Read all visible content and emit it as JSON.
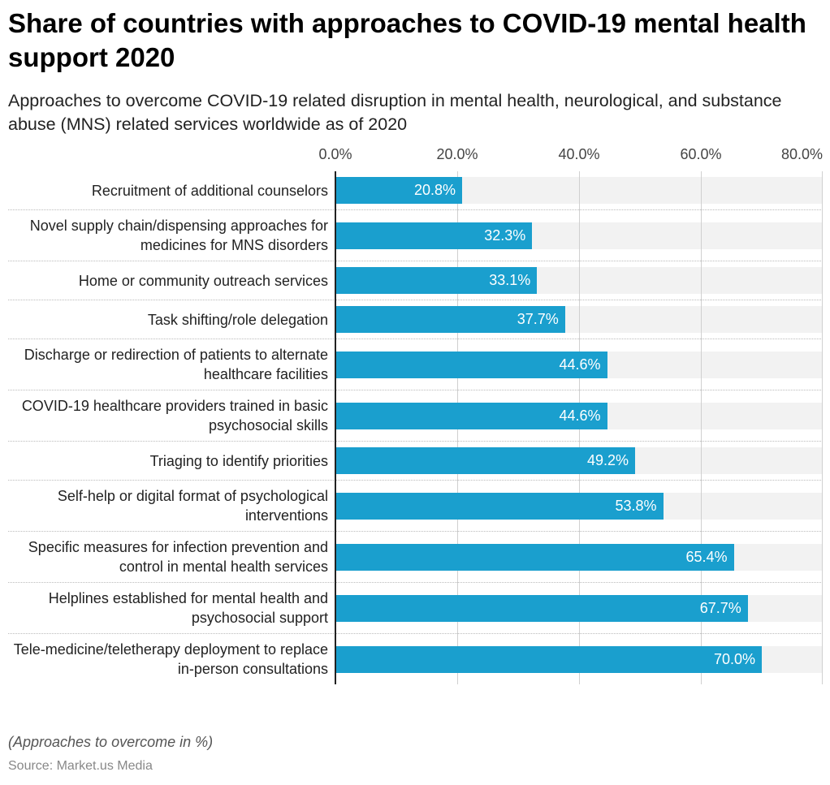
{
  "chart_data": {
    "type": "bar",
    "orientation": "horizontal",
    "title": "Share of countries with approaches to COVID-19 mental health support 2020",
    "subtitle": "Approaches to overcome COVID-19 related disruption in mental health, neurological, and substance abuse (MNS) related services worldwide as of 2020",
    "note": "(Approaches to overcome in %)",
    "source": "Source: Market.us Media",
    "categories": [
      "Recruitment of additional counselors",
      "Novel supply chain/dispensing approaches for medicines for MNS disorders",
      "Home or community outreach services",
      "Task shifting/role delegation",
      "Discharge or redirection of patients to alternate healthcare facilities",
      "COVID-19 healthcare providers trained in basic psychosocial skills",
      "Triaging to identify priorities",
      "Self-help or digital format of psychological interventions",
      "Specific measures for infection prevention and control in mental health services",
      "Helplines established for mental health and psychosocial support",
      "Tele-medicine/teletherapy deployment to replace in-person consultations"
    ],
    "values": [
      20.8,
      32.3,
      33.1,
      37.7,
      44.6,
      44.6,
      49.2,
      53.8,
      65.4,
      67.7,
      70.0
    ],
    "value_labels": [
      "20.8%",
      "32.3%",
      "33.1%",
      "37.7%",
      "44.6%",
      "44.6%",
      "49.2%",
      "53.8%",
      "65.4%",
      "67.7%",
      "70.0%"
    ],
    "color": "#1a9fce",
    "xlim": [
      0,
      80
    ],
    "xticks": [
      {
        "value": 0,
        "label": "0.0%"
      },
      {
        "value": 20,
        "label": "20.0%"
      },
      {
        "value": 40,
        "label": "40.0%"
      },
      {
        "value": 60,
        "label": "60.0%"
      },
      {
        "value": 80,
        "label": "80.0%"
      }
    ],
    "grid": true
  }
}
